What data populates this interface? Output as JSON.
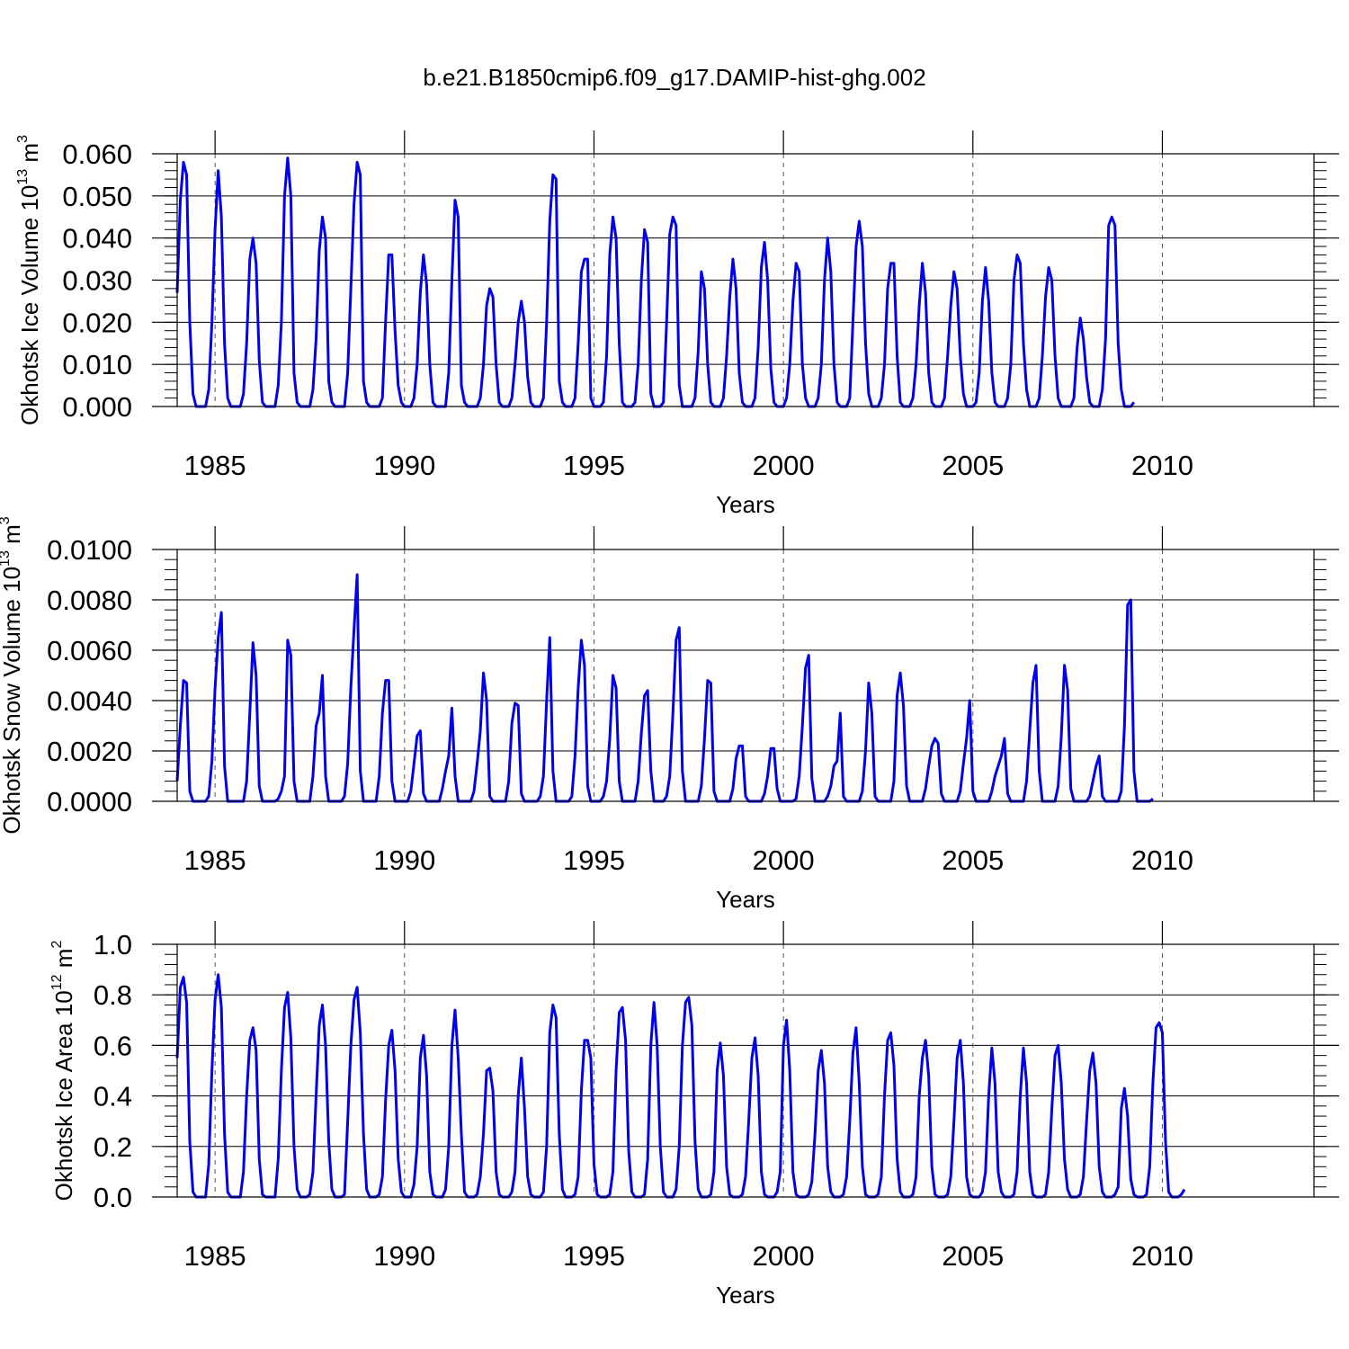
{
  "figure": {
    "title": "b.e21.B1850cmip6.f09_g17.DAMIP-hist-ghg.002",
    "line_color": "#0000ee"
  },
  "chart_data": [
    {
      "type": "line",
      "title": "b.e21.B1850cmip6.f09_g17.DAMIP-hist-ghg.002",
      "ylabel_text": "Okhotsk Ice Volume 10",
      "ylabel_exp": "13",
      "ylabel_unit": " m",
      "ylabel_unit_exp": "3",
      "xlabel": "Years",
      "xlim": [
        1984.0,
        2014.0
      ],
      "ylim": [
        0,
        0.06
      ],
      "x_ticks": [
        1985,
        1990,
        1995,
        2000,
        2005,
        2010
      ],
      "y_ticks": [
        0,
        0.01,
        0.02,
        0.03,
        0.04,
        0.05,
        0.06
      ],
      "y_tick_labels": [
        "0.000",
        "0.010",
        "0.020",
        "0.030",
        "0.040",
        "0.050",
        "0.060"
      ],
      "y_minor_step": 0.002,
      "x_start": 1984.0,
      "x_step": 0.0833333,
      "series": [
        {
          "name": "Okhotsk Ice Volume",
          "values": [
            0.027,
            0.049,
            0.058,
            0.055,
            0.02,
            0.003,
            0,
            0,
            0,
            0,
            0.004,
            0.02,
            0.042,
            0.056,
            0.045,
            0.015,
            0.002,
            0,
            0,
            0,
            0,
            0.003,
            0.015,
            0.035,
            0.04,
            0.034,
            0.011,
            0.001,
            0,
            0,
            0,
            0,
            0.005,
            0.02,
            0.05,
            0.059,
            0.05,
            0.008,
            0.001,
            0,
            0,
            0,
            0,
            0.004,
            0.016,
            0.037,
            0.045,
            0.04,
            0.006,
            0.001,
            0,
            0,
            0,
            0,
            0.008,
            0.028,
            0.048,
            0.058,
            0.055,
            0.006,
            0.001,
            0,
            0,
            0,
            0,
            0.002,
            0.02,
            0.036,
            0.036,
            0.018,
            0.005,
            0.001,
            0,
            0,
            0,
            0.002,
            0.01,
            0.027,
            0.036,
            0.029,
            0.01,
            0.001,
            0,
            0,
            0,
            0,
            0.008,
            0.03,
            0.049,
            0.045,
            0.005,
            0.001,
            0,
            0,
            0,
            0,
            0.002,
            0.01,
            0.024,
            0.028,
            0.026,
            0.01,
            0.001,
            0,
            0,
            0,
            0.002,
            0.01,
            0.02,
            0.025,
            0.02,
            0.007,
            0.001,
            0,
            0,
            0,
            0.002,
            0.02,
            0.044,
            0.055,
            0.054,
            0.006,
            0.001,
            0,
            0,
            0,
            0.002,
            0.015,
            0.032,
            0.035,
            0.035,
            0.002,
            0,
            0,
            0,
            0.001,
            0.012,
            0.036,
            0.045,
            0.04,
            0.015,
            0.001,
            0,
            0,
            0,
            0.001,
            0.01,
            0.03,
            0.042,
            0.039,
            0.003,
            0,
            0,
            0,
            0.001,
            0.02,
            0.041,
            0.045,
            0.043,
            0.005,
            0,
            0,
            0,
            0,
            0.002,
            0.013,
            0.032,
            0.028,
            0.01,
            0.001,
            0,
            0,
            0,
            0.002,
            0.012,
            0.026,
            0.035,
            0.028,
            0.008,
            0.001,
            0,
            0,
            0,
            0.002,
            0.014,
            0.033,
            0.039,
            0.03,
            0.009,
            0.001,
            0,
            0,
            0,
            0.002,
            0.01,
            0.025,
            0.034,
            0.032,
            0.01,
            0.002,
            0,
            0,
            0,
            0.002,
            0.01,
            0.03,
            0.04,
            0.032,
            0.01,
            0.001,
            0,
            0,
            0,
            0.002,
            0.02,
            0.038,
            0.044,
            0.038,
            0.015,
            0.003,
            0,
            0,
            0,
            0.002,
            0.01,
            0.028,
            0.034,
            0.034,
            0.012,
            0.001,
            0,
            0,
            0,
            0.002,
            0.01,
            0.024,
            0.034,
            0.027,
            0.008,
            0.001,
            0,
            0,
            0,
            0.002,
            0.012,
            0.024,
            0.032,
            0.028,
            0.012,
            0.003,
            0,
            0,
            0,
            0.001,
            0.008,
            0.025,
            0.033,
            0.025,
            0.008,
            0.001,
            0,
            0,
            0,
            0.002,
            0.01,
            0.03,
            0.036,
            0.034,
            0.015,
            0.004,
            0,
            0,
            0,
            0.002,
            0.012,
            0.026,
            0.033,
            0.03,
            0.012,
            0.002,
            0,
            0,
            0,
            0,
            0.002,
            0.014,
            0.021,
            0.016,
            0.007,
            0.001,
            0,
            0,
            0,
            0.004,
            0.016,
            0.043,
            0.045,
            0.043,
            0.015,
            0.004,
            0,
            0,
            0,
            0.001
          ]
        }
      ]
    },
    {
      "type": "line",
      "ylabel_text": "Okhotsk Snow Volume 10",
      "ylabel_exp": "13",
      "ylabel_unit": " m",
      "ylabel_unit_exp": "3",
      "xlabel": "Years",
      "xlim": [
        1984.0,
        2014.0
      ],
      "ylim": [
        0,
        0.01
      ],
      "x_ticks": [
        1985,
        1990,
        1995,
        2000,
        2005,
        2010
      ],
      "y_ticks": [
        0,
        0.002,
        0.004,
        0.006,
        0.008,
        0.01
      ],
      "y_tick_labels": [
        "0.0000",
        "0.0020",
        "0.0040",
        "0.0060",
        "0.0080",
        "0.0100"
      ],
      "y_minor_step": 0.0004,
      "x_start": 1984.0,
      "x_step": 0.0833333,
      "series": [
        {
          "name": "Okhotsk Snow Volume",
          "values": [
            0.0008,
            0.003,
            0.0048,
            0.0047,
            0.0004,
            0,
            0,
            0,
            0,
            0,
            0.0002,
            0.0016,
            0.0045,
            0.0065,
            0.0075,
            0.0014,
            0,
            0,
            0,
            0,
            0,
            0,
            0.0008,
            0.0035,
            0.0063,
            0.005,
            0.0006,
            0,
            0,
            0,
            0,
            0,
            0.0001,
            0.0004,
            0.001,
            0.0064,
            0.0058,
            0.0008,
            0,
            0,
            0,
            0,
            0,
            0.001,
            0.003,
            0.0035,
            0.005,
            0.001,
            0,
            0,
            0,
            0,
            0,
            0.0002,
            0.0015,
            0.0045,
            0.0068,
            0.009,
            0.0012,
            0,
            0,
            0,
            0,
            0,
            0.001,
            0.0035,
            0.0048,
            0.0048,
            0.0008,
            0,
            0,
            0,
            0,
            0,
            0.0004,
            0.0015,
            0.0026,
            0.0028,
            0.0003,
            0,
            0,
            0,
            0,
            0,
            0.0005,
            0.0012,
            0.0018,
            0.0037,
            0.001,
            0,
            0,
            0,
            0,
            0,
            0.0004,
            0.0015,
            0.0028,
            0.0051,
            0.004,
            0.0002,
            0,
            0,
            0,
            0,
            0,
            0.0008,
            0.0031,
            0.0039,
            0.0038,
            0.0003,
            0,
            0,
            0,
            0,
            0,
            0.0002,
            0.001,
            0.004,
            0.0065,
            0.0012,
            0,
            0,
            0,
            0,
            0,
            0.0002,
            0.0018,
            0.0045,
            0.0064,
            0.0054,
            0.0006,
            0,
            0,
            0,
            0,
            0.0002,
            0.0008,
            0.0025,
            0.005,
            0.0045,
            0.0008,
            0,
            0,
            0,
            0,
            0,
            0.0008,
            0.0027,
            0.0042,
            0.0044,
            0.0012,
            0,
            0,
            0,
            0,
            0.0002,
            0.001,
            0.0035,
            0.0064,
            0.0069,
            0.0012,
            0,
            0,
            0,
            0,
            0,
            0.0006,
            0.0025,
            0.0048,
            0.0047,
            0.0004,
            0,
            0,
            0,
            0,
            0,
            0.0005,
            0.0017,
            0.0022,
            0.0022,
            0.0002,
            0,
            0,
            0,
            0,
            0,
            0.0003,
            0.001,
            0.0021,
            0.0021,
            0.0005,
            0,
            0,
            0,
            0,
            0,
            0.0001,
            0.001,
            0.003,
            0.0053,
            0.0058,
            0.0009,
            0,
            0,
            0,
            0,
            0.0002,
            0.0006,
            0.0014,
            0.0016,
            0.0035,
            0.0002,
            0,
            0,
            0,
            0,
            0,
            0.0004,
            0.002,
            0.0047,
            0.0035,
            0.0002,
            0,
            0,
            0,
            0,
            0,
            0.0008,
            0.0042,
            0.0051,
            0.0038,
            0.0006,
            0,
            0,
            0,
            0,
            0,
            0.0005,
            0.0014,
            0.0022,
            0.0025,
            0.0023,
            0.0003,
            0,
            0,
            0,
            0,
            0,
            0.0004,
            0.0015,
            0.0025,
            0.004,
            0.0004,
            0,
            0,
            0,
            0,
            0,
            0.0004,
            0.001,
            0.0014,
            0.0018,
            0.0025,
            0.0003,
            0,
            0,
            0,
            0,
            0,
            0.0008,
            0.0028,
            0.0047,
            0.0054,
            0.0012,
            0,
            0,
            0,
            0,
            0,
            0.0006,
            0.0026,
            0.0054,
            0.0044,
            0.0005,
            0,
            0,
            0,
            0,
            0,
            0.0002,
            0.0008,
            0.0014,
            0.0018,
            0.0002,
            0,
            0,
            0,
            0,
            0,
            0.0004,
            0.003,
            0.0078,
            0.008,
            0.0012,
            0,
            0,
            0,
            0,
            0,
            0.0001
          ]
        }
      ]
    },
    {
      "type": "line",
      "ylabel_text": "Okhotsk Ice Area 10",
      "ylabel_exp": "12",
      "ylabel_unit": " m",
      "ylabel_unit_exp": "2",
      "xlabel": "Years",
      "xlim": [
        1984.0,
        2014.0
      ],
      "ylim": [
        0,
        1.0
      ],
      "x_ticks": [
        1985,
        1990,
        1995,
        2000,
        2005,
        2010
      ],
      "y_ticks": [
        0,
        0.2,
        0.4,
        0.6,
        0.8,
        1.0
      ],
      "y_tick_labels": [
        "0.0",
        "0.2",
        "0.4",
        "0.6",
        "0.8",
        "1.0"
      ],
      "y_minor_step": 0.04,
      "x_start": 1984.0,
      "x_step": 0.0833333,
      "series": [
        {
          "name": "Okhotsk Ice Area",
          "values": [
            0.55,
            0.83,
            0.87,
            0.77,
            0.22,
            0.02,
            0,
            0,
            0,
            0,
            0.13,
            0.5,
            0.78,
            0.88,
            0.75,
            0.25,
            0.02,
            0,
            0,
            0,
            0,
            0.1,
            0.4,
            0.62,
            0.67,
            0.58,
            0.15,
            0.01,
            0,
            0,
            0,
            0,
            0.15,
            0.5,
            0.75,
            0.81,
            0.63,
            0.2,
            0.03,
            0,
            0,
            0,
            0.01,
            0.1,
            0.4,
            0.68,
            0.76,
            0.6,
            0.22,
            0.03,
            0,
            0,
            0,
            0.01,
            0.3,
            0.6,
            0.78,
            0.83,
            0.65,
            0.25,
            0.03,
            0,
            0,
            0,
            0.01,
            0.08,
            0.38,
            0.6,
            0.66,
            0.5,
            0.15,
            0.02,
            0,
            0,
            0,
            0.05,
            0.2,
            0.55,
            0.64,
            0.48,
            0.1,
            0.01,
            0,
            0,
            0,
            0.03,
            0.2,
            0.6,
            0.74,
            0.55,
            0.25,
            0.02,
            0,
            0,
            0,
            0.01,
            0.08,
            0.25,
            0.5,
            0.51,
            0.42,
            0.1,
            0.01,
            0,
            0,
            0,
            0.02,
            0.1,
            0.4,
            0.55,
            0.35,
            0.08,
            0.01,
            0,
            0,
            0,
            0.02,
            0.2,
            0.65,
            0.76,
            0.71,
            0.25,
            0.03,
            0,
            0,
            0,
            0.01,
            0.08,
            0.42,
            0.62,
            0.62,
            0.55,
            0.13,
            0.01,
            0,
            0,
            0,
            0.01,
            0.1,
            0.5,
            0.73,
            0.75,
            0.62,
            0.18,
            0.02,
            0,
            0,
            0,
            0.01,
            0.15,
            0.6,
            0.77,
            0.6,
            0.2,
            0.02,
            0,
            0,
            0,
            0.03,
            0.2,
            0.6,
            0.77,
            0.79,
            0.68,
            0.22,
            0.03,
            0,
            0,
            0,
            0.01,
            0.1,
            0.5,
            0.61,
            0.48,
            0.12,
            0.01,
            0,
            0,
            0,
            0.01,
            0.08,
            0.3,
            0.55,
            0.63,
            0.48,
            0.1,
            0.01,
            0,
            0,
            0,
            0.02,
            0.1,
            0.6,
            0.7,
            0.5,
            0.1,
            0.01,
            0,
            0,
            0,
            0.01,
            0.06,
            0.25,
            0.5,
            0.58,
            0.45,
            0.12,
            0.02,
            0,
            0,
            0,
            0.01,
            0.08,
            0.3,
            0.57,
            0.67,
            0.45,
            0.12,
            0.01,
            0,
            0,
            0,
            0.01,
            0.08,
            0.4,
            0.62,
            0.65,
            0.52,
            0.15,
            0.02,
            0,
            0,
            0,
            0.01,
            0.08,
            0.4,
            0.55,
            0.62,
            0.48,
            0.12,
            0.01,
            0,
            0,
            0,
            0.01,
            0.08,
            0.3,
            0.55,
            0.62,
            0.45,
            0.08,
            0.01,
            0,
            0,
            0,
            0.02,
            0.1,
            0.4,
            0.59,
            0.45,
            0.1,
            0.02,
            0,
            0,
            0,
            0.01,
            0.1,
            0.4,
            0.59,
            0.45,
            0.1,
            0.01,
            0,
            0,
            0,
            0.01,
            0.1,
            0.35,
            0.56,
            0.6,
            0.45,
            0.15,
            0.03,
            0,
            0,
            0,
            0.01,
            0.08,
            0.3,
            0.5,
            0.57,
            0.45,
            0.12,
            0.02,
            0,
            0,
            0,
            0.01,
            0.04,
            0.35,
            0.43,
            0.32,
            0.07,
            0.01,
            0,
            0,
            0,
            0.01,
            0.12,
            0.45,
            0.67,
            0.69,
            0.65,
            0.22,
            0.02,
            0,
            0,
            0,
            0.01,
            0.03
          ]
        }
      ]
    }
  ]
}
